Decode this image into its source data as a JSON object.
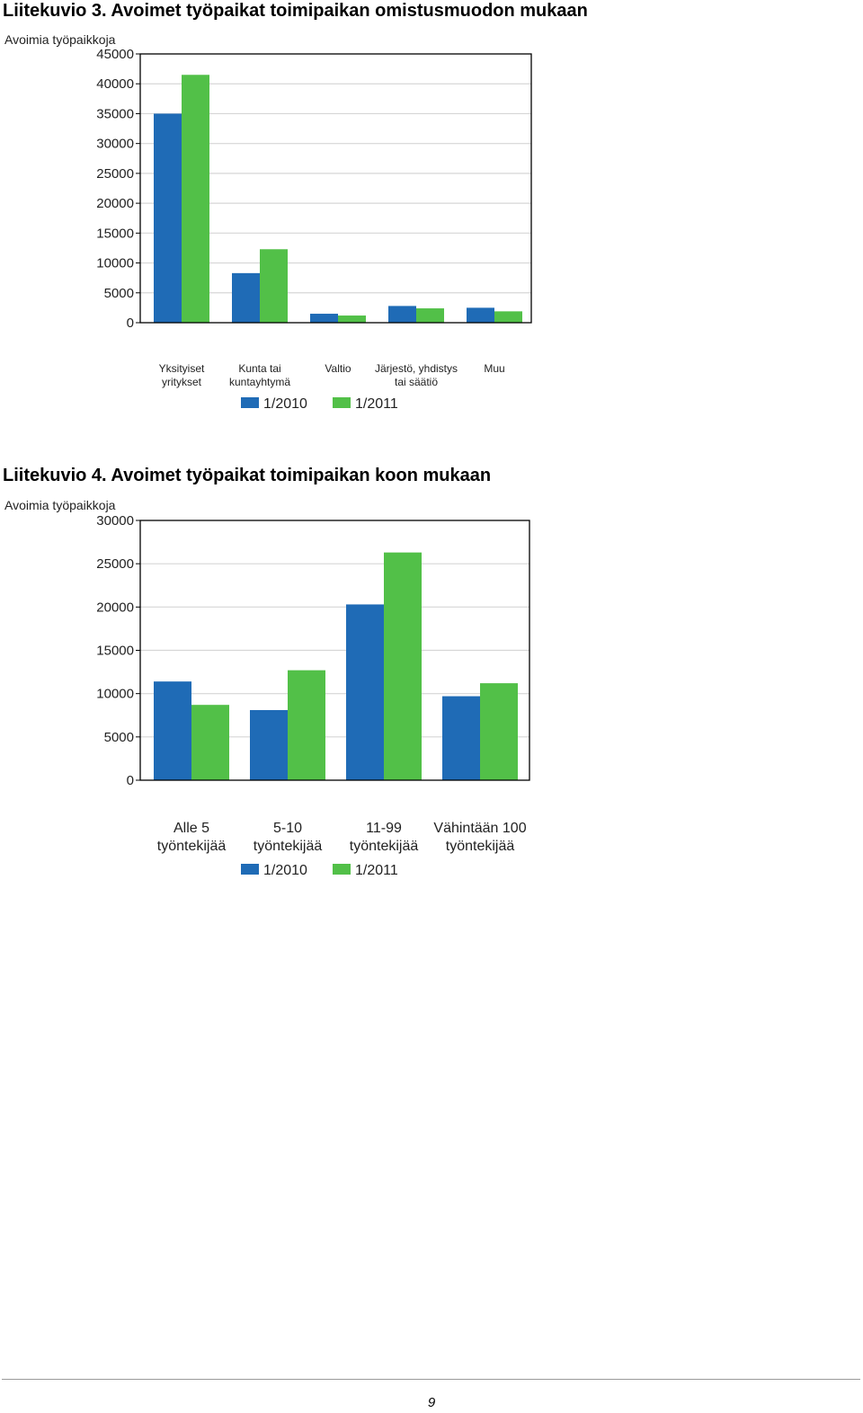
{
  "captions": {
    "figure3": "Liitekuvio 3. Avoimet työpaikat toimipaikan omistusmuodon mukaan",
    "figure4": "Liitekuvio 4. Avoimet työpaikat toimipaikan koon mukaan"
  },
  "footer": {
    "page_number": "9"
  },
  "colors": {
    "series_2010": "#1f6bb6",
    "series_2011": "#52c048",
    "grid": "#d6d6d6",
    "axis": "#000000"
  },
  "chart_data": [
    {
      "type": "bar",
      "ylabel": "Avoimia työpaikkoja",
      "ylim": [
        0,
        45000
      ],
      "yticks": [
        0,
        5000,
        10000,
        15000,
        20000,
        25000,
        30000,
        35000,
        40000,
        45000
      ],
      "categories": [
        [
          "Yksityiset",
          "yritykset"
        ],
        [
          "Kunta tai",
          "kuntayhtymä"
        ],
        [
          "Valtio"
        ],
        [
          "Järjestö, yhdistys",
          "tai säätiö"
        ],
        [
          "Muu"
        ]
      ],
      "series": [
        {
          "name": "1/2010",
          "color": "#1f6bb6",
          "values": [
            35000,
            8300,
            1500,
            2800,
            2500
          ]
        },
        {
          "name": "1/2011",
          "color": "#52c048",
          "values": [
            41500,
            12300,
            1200,
            2400,
            1900
          ]
        }
      ],
      "grid": true,
      "legend": "bottom-center"
    },
    {
      "type": "bar",
      "ylabel": "Avoimia työpaikkoja",
      "ylim": [
        0,
        30000
      ],
      "yticks": [
        0,
        5000,
        10000,
        15000,
        20000,
        25000,
        30000
      ],
      "categories": [
        [
          "Alle 5",
          "työntekijää"
        ],
        [
          "5-10",
          "työntekijää"
        ],
        [
          "11-99",
          "työntekijää"
        ],
        [
          "Vähintään 100",
          "työntekijää"
        ]
      ],
      "series": [
        {
          "name": "1/2010",
          "color": "#1f6bb6",
          "values": [
            11400,
            8100,
            20300,
            9700
          ]
        },
        {
          "name": "1/2011",
          "color": "#52c048",
          "values": [
            8700,
            12700,
            26300,
            11200
          ]
        }
      ],
      "grid": true,
      "legend": "bottom-center"
    }
  ]
}
